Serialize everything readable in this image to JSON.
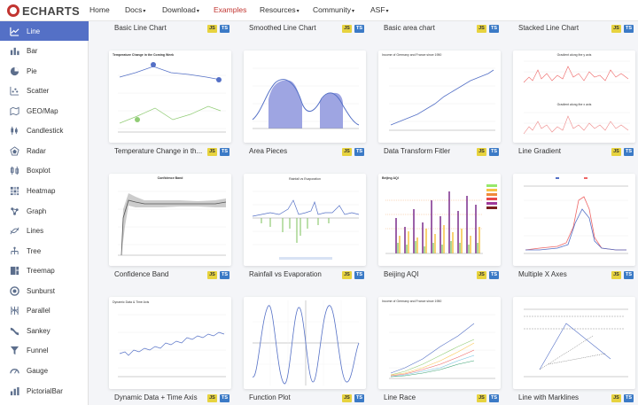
{
  "header": {
    "logo_text": "ECHARTS",
    "nav": [
      {
        "label": "Home",
        "caret": false
      },
      {
        "label": "Docs",
        "caret": true
      },
      {
        "label": "Download",
        "caret": true
      },
      {
        "label": "Examples",
        "caret": false,
        "active": true
      },
      {
        "label": "Resources",
        "caret": true
      },
      {
        "label": "Community",
        "caret": true
      },
      {
        "label": "ASF",
        "caret": true
      }
    ],
    "accent_color": "#c23531"
  },
  "sidebar": {
    "active_color": "#5470c6",
    "items": [
      {
        "label": "Line",
        "icon": "line-chart-icon",
        "active": true
      },
      {
        "label": "Bar",
        "icon": "bar-chart-icon"
      },
      {
        "label": "Pie",
        "icon": "pie-chart-icon"
      },
      {
        "label": "Scatter",
        "icon": "scatter-chart-icon"
      },
      {
        "label": "GEO/Map",
        "icon": "map-icon"
      },
      {
        "label": "Candlestick",
        "icon": "candlestick-icon"
      },
      {
        "label": "Radar",
        "icon": "radar-icon"
      },
      {
        "label": "Boxplot",
        "icon": "boxplot-icon"
      },
      {
        "label": "Heatmap",
        "icon": "heatmap-icon"
      },
      {
        "label": "Graph",
        "icon": "graph-icon"
      },
      {
        "label": "Lines",
        "icon": "lines-icon"
      },
      {
        "label": "Tree",
        "icon": "tree-icon"
      },
      {
        "label": "Treemap",
        "icon": "treemap-icon"
      },
      {
        "label": "Sunburst",
        "icon": "sunburst-icon"
      },
      {
        "label": "Parallel",
        "icon": "parallel-icon"
      },
      {
        "label": "Sankey",
        "icon": "sankey-icon"
      },
      {
        "label": "Funnel",
        "icon": "funnel-icon"
      },
      {
        "label": "Gauge",
        "icon": "gauge-icon"
      },
      {
        "label": "PictorialBar",
        "icon": "pictorial-bar-icon"
      }
    ]
  },
  "badges": {
    "js": "JS",
    "ts": "TS"
  },
  "top_row_titles": [
    "Basic Line Chart",
    "Smoothed Line Chart",
    "Basic area chart",
    "Stacked Line Chart"
  ],
  "examples": [
    {
      "title": "Temperature Change in th...",
      "thumb_title": "Temperature Change in the Coming Week"
    },
    {
      "title": "Area Pieces"
    },
    {
      "title": "Data Transform Fitler",
      "thumb_title": "Income of Germany and France since 1950"
    },
    {
      "title": "Line Gradient",
      "thumb_title": "Gradient along the y axis",
      "thumb_title2": "Gradient along the x axis"
    },
    {
      "title": "Confidence Band",
      "thumb_title": "Confidence Band"
    },
    {
      "title": "Rainfall vs Evaporation",
      "thumb_title": "Rainfall vs Evaporation"
    },
    {
      "title": "Beijing AQI",
      "thumb_title": "Beijing AQI"
    },
    {
      "title": "Multiple X Axes"
    },
    {
      "title": "Dynamic Data + Time Axis",
      "thumb_title": "Dynamic Data & Time Axis"
    },
    {
      "title": "Function Plot"
    },
    {
      "title": "Line Race",
      "thumb_title": "Income of Germany and France since 1950"
    },
    {
      "title": "Line with Marklines"
    }
  ]
}
